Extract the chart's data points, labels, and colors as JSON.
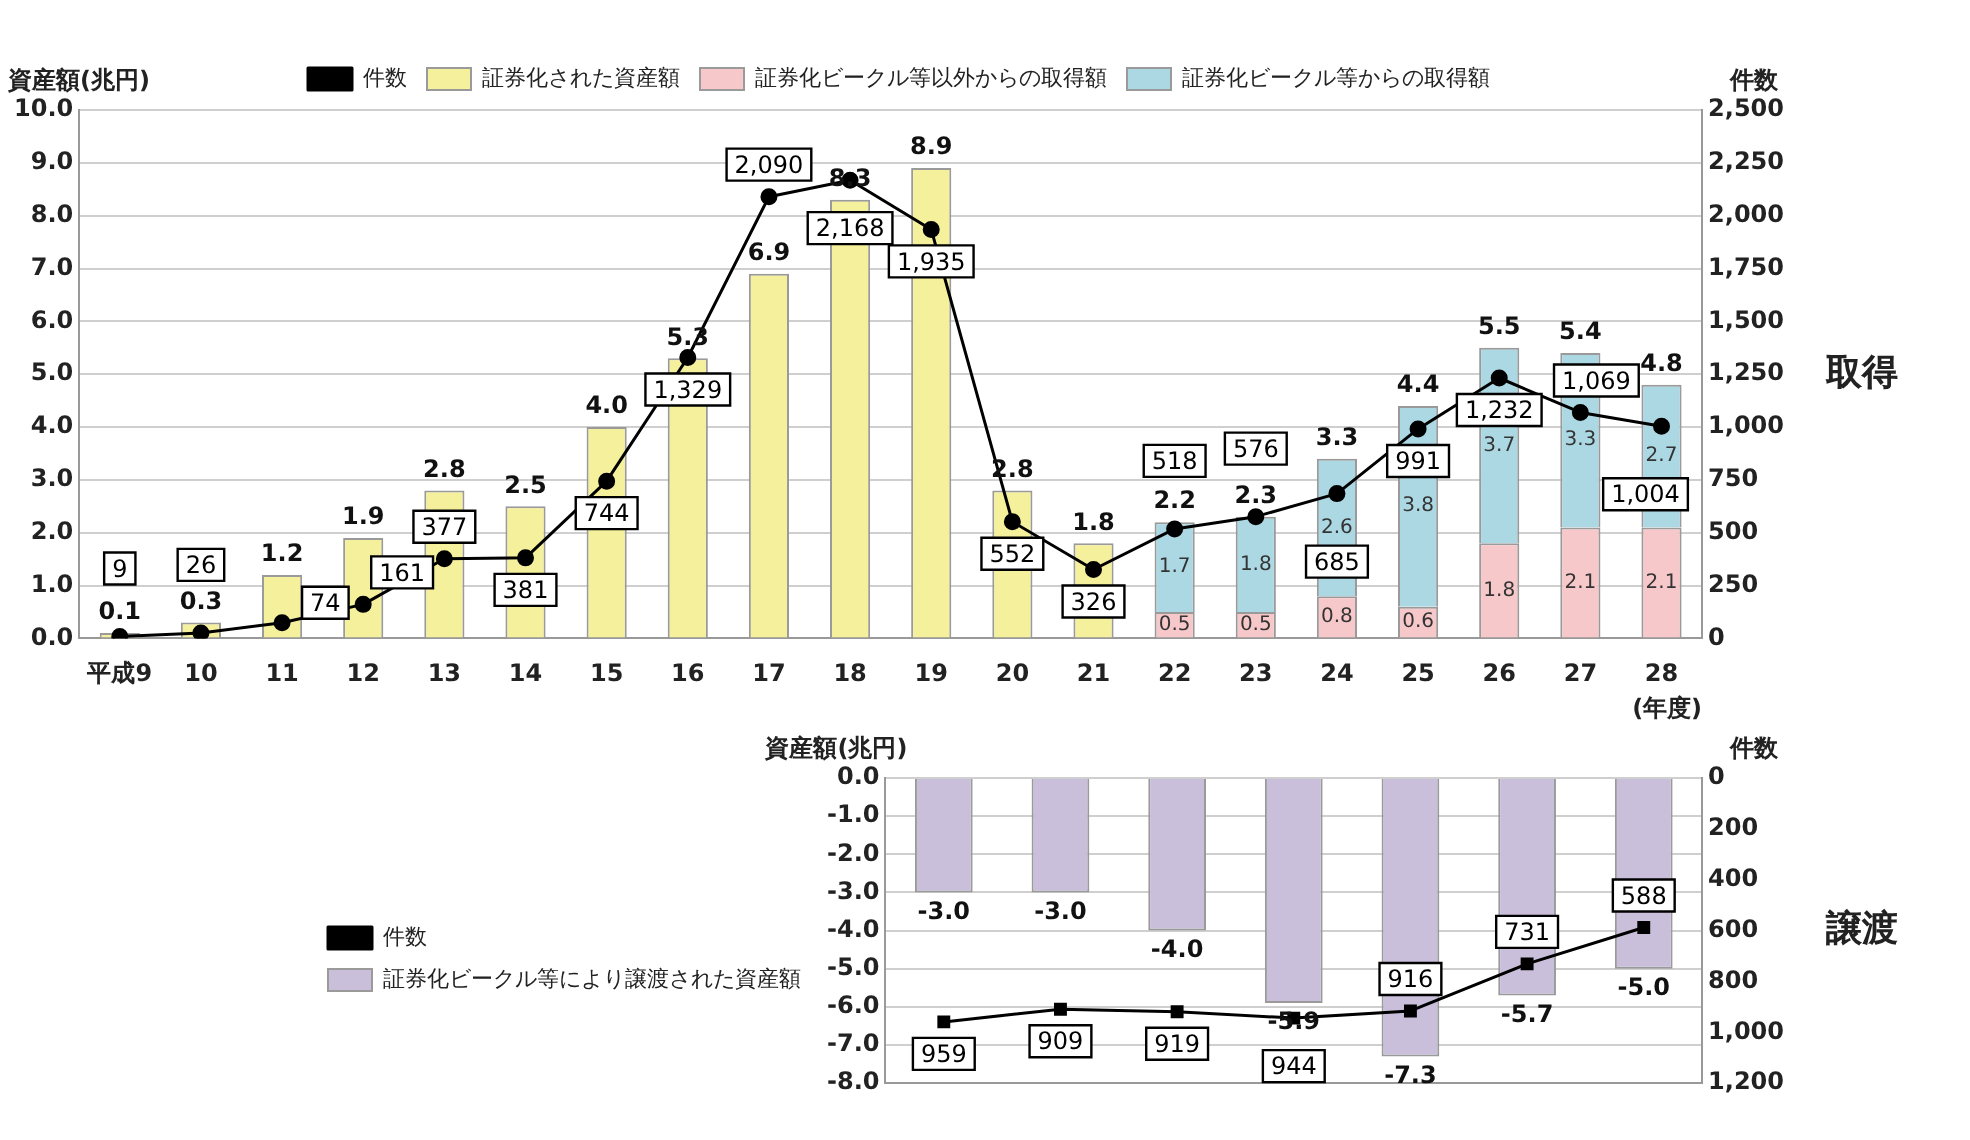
{
  "chart_data": [
    {
      "type": "bar",
      "stacked": true,
      "ylabel": "資産額(兆円)",
      "y2label": "件数",
      "xlabel": "(年度)",
      "annotations": [
        "取得"
      ],
      "categories": [
        "平成9",
        "10",
        "11",
        "12",
        "13",
        "14",
        "15",
        "16",
        "17",
        "18",
        "19",
        "20",
        "21",
        "22",
        "23",
        "24",
        "25",
        "26",
        "27",
        "28"
      ],
      "series": [
        {
          "name": "証券化された資産額",
          "color": "#f5f09c",
          "values": [
            0.1,
            0.3,
            1.2,
            1.9,
            2.8,
            2.5,
            4.0,
            5.3,
            6.9,
            8.3,
            8.9,
            2.8,
            1.8,
            null,
            null,
            null,
            null,
            null,
            null,
            null
          ],
          "value_labels": [
            "0.1",
            "0.3",
            "1.2",
            "1.9",
            "2.8",
            "2.5",
            "4.0",
            "5.3",
            "6.9",
            "8.3",
            "8.9",
            "2.8",
            "1.8",
            null,
            null,
            null,
            null,
            null,
            null,
            null
          ]
        },
        {
          "name": "証券化ビークル等以外からの取得額",
          "color": "#f7c8ca",
          "values": [
            null,
            null,
            null,
            null,
            null,
            null,
            null,
            null,
            null,
            null,
            null,
            null,
            null,
            0.5,
            0.5,
            0.8,
            0.6,
            1.8,
            2.1,
            2.1
          ],
          "value_labels": [
            null,
            null,
            null,
            null,
            null,
            null,
            null,
            null,
            null,
            null,
            null,
            null,
            null,
            "0.5",
            "0.5",
            "0.8",
            "0.6",
            "1.8",
            "2.1",
            "2.1"
          ]
        },
        {
          "name": "証券化ビークル等からの取得額",
          "color": "#acd8e4",
          "values": [
            null,
            null,
            null,
            null,
            null,
            null,
            null,
            null,
            null,
            null,
            null,
            null,
            null,
            1.7,
            1.8,
            2.6,
            3.8,
            3.7,
            3.3,
            2.7
          ],
          "value_labels": [
            null,
            null,
            null,
            null,
            null,
            null,
            null,
            null,
            null,
            null,
            null,
            null,
            null,
            "1.7",
            "1.8",
            "2.6",
            "3.8",
            "3.7",
            "3.3",
            "2.7"
          ]
        },
        {
          "name": "件数",
          "type": "line",
          "axis": "y2",
          "color": "#000000",
          "values": [
            9,
            26,
            74,
            161,
            377,
            381,
            744,
            1329,
            2090,
            2168,
            1935,
            552,
            326,
            518,
            576,
            685,
            991,
            1232,
            1069,
            1004
          ],
          "value_labels": [
            "9",
            "26",
            "74",
            "161",
            "377",
            "381",
            "744",
            "1,329",
            "2,090",
            "2,168",
            "1,935",
            "552",
            "326",
            "518",
            "576",
            "685",
            "991",
            "1,232",
            "1,069",
            "1,004"
          ]
        }
      ],
      "totals": [
        null,
        null,
        null,
        null,
        null,
        null,
        null,
        null,
        null,
        null,
        null,
        null,
        null,
        "2.2",
        "2.3",
        "3.3",
        "4.4",
        "5.5",
        "5.4",
        "4.8"
      ],
      "ylim": [
        0,
        10
      ],
      "yticks": [
        {
          "value": 0,
          "label": "0.0"
        },
        {
          "value": 1,
          "label": "1.0"
        },
        {
          "value": 2,
          "label": "2.0"
        },
        {
          "value": 3,
          "label": "3.0"
        },
        {
          "value": 4,
          "label": "4.0"
        },
        {
          "value": 5,
          "label": "5.0"
        },
        {
          "value": 6,
          "label": "6.0"
        },
        {
          "value": 7,
          "label": "7.0"
        },
        {
          "value": 8,
          "label": "8.0"
        },
        {
          "value": 9,
          "label": "9.0"
        },
        {
          "value": 10,
          "label": "10.0"
        }
      ],
      "y2lim": [
        0,
        2500
      ],
      "y2ticks": [
        0,
        250,
        500,
        750,
        {
          "value": 1000,
          "label": "1,000"
        },
        {
          "value": 1250,
          "label": "1,250"
        },
        {
          "value": 1500,
          "label": "1,500"
        },
        {
          "value": 1750,
          "label": "1,750"
        },
        {
          "value": 2000,
          "label": "2,000"
        },
        {
          "value": 2250,
          "label": "2,250"
        },
        {
          "value": 2500,
          "label": "2,500"
        }
      ],
      "grid": "y",
      "legend": "top",
      "marker": "circle"
    },
    {
      "type": "bar",
      "ylabel": "資産額(兆円)",
      "y2label": "件数",
      "annotations": [
        "譲渡"
      ],
      "categories": [
        null,
        null,
        null,
        null,
        null,
        null,
        null
      ],
      "series": [
        {
          "name": "証券化ビークル等により譲渡された資産額",
          "color": "#c9bfdb",
          "values": [
            -3.0,
            -3.0,
            -4.0,
            -5.9,
            -7.3,
            -5.7,
            -5.0
          ],
          "value_labels": [
            "-3.0",
            "-3.0",
            "-4.0",
            "-5.9",
            "-7.3",
            "-5.7",
            "-5.0"
          ]
        },
        {
          "name": "件数",
          "type": "line",
          "axis": "y2",
          "color": "#000000",
          "values": [
            959,
            909,
            919,
            944,
            916,
            731,
            588
          ],
          "value_labels": [
            "959",
            "909",
            "919",
            "944",
            "916",
            "731",
            "588"
          ]
        }
      ],
      "ylim": [
        -8,
        0
      ],
      "yticks": [
        {
          "value": 0,
          "label": "0.0"
        },
        {
          "value": -1,
          "label": "-1.0"
        },
        {
          "value": -2,
          "label": "-2.0"
        },
        {
          "value": -3,
          "label": "-3.0"
        },
        {
          "value": -4,
          "label": "-4.0"
        },
        {
          "value": -5,
          "label": "-5.0"
        },
        {
          "value": -6,
          "label": "-6.0"
        },
        {
          "value": -7,
          "label": "-7.0"
        },
        {
          "value": -8,
          "label": "-8.0"
        }
      ],
      "y2lim": [
        1200,
        0
      ],
      "y2ticks": [
        0,
        200,
        400,
        600,
        800,
        {
          "value": 1000,
          "label": "1,000"
        },
        {
          "value": 1200,
          "label": "1,200"
        }
      ],
      "grid": "y",
      "legend": "left",
      "marker": "square"
    }
  ]
}
